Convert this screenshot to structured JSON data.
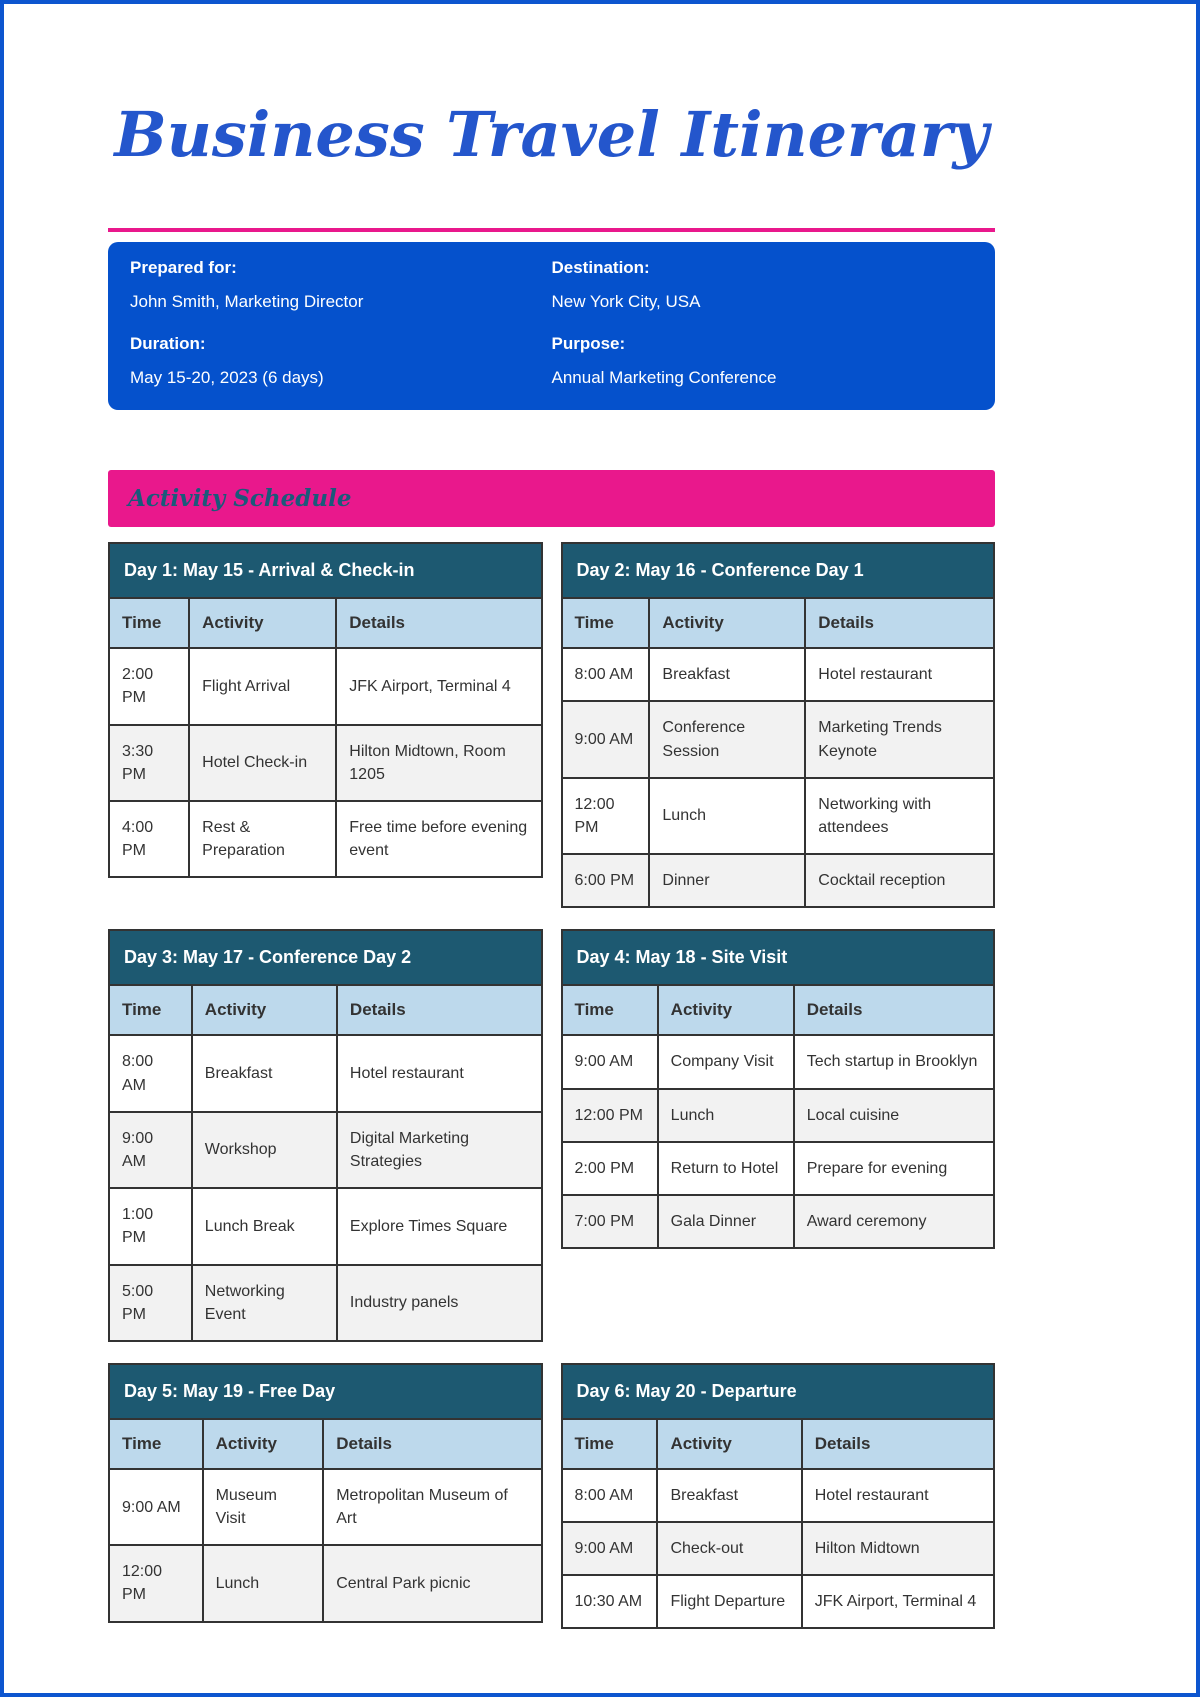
{
  "page": {
    "title": "Business Travel Itinerary",
    "banner": "Activity Schedule"
  },
  "info": {
    "fields": [
      {
        "label": "Prepared for:",
        "value": "John Smith, Marketing Director"
      },
      {
        "label": "Destination:",
        "value": "New York City, USA"
      },
      {
        "label": "Duration:",
        "value": "May 15-20, 2023 (6 days)"
      },
      {
        "label": "Purpose:",
        "value": "Annual Marketing Conference"
      }
    ]
  },
  "schedule": {
    "columns": [
      "Time",
      "Activity",
      "Details"
    ],
    "days": [
      {
        "title": "Day 1: May 15 - Arrival & Check-in",
        "rows": [
          {
            "time": "2:00 PM",
            "activity": "Flight Arrival",
            "details": "JFK Airport, Terminal 4"
          },
          {
            "time": "3:30 PM",
            "activity": "Hotel Check-in",
            "details": "Hilton Midtown, Room 1205"
          },
          {
            "time": "4:00 PM",
            "activity": "Rest & Preparation",
            "details": "Free time before evening event"
          }
        ]
      },
      {
        "title": "Day 2: May 16 - Conference Day 1",
        "rows": [
          {
            "time": "8:00 AM",
            "activity": "Breakfast",
            "details": "Hotel restaurant"
          },
          {
            "time": "9:00 AM",
            "activity": "Conference Session",
            "details": "Marketing Trends Keynote"
          },
          {
            "time": "12:00 PM",
            "activity": "Lunch",
            "details": "Networking with attendees"
          },
          {
            "time": "6:00 PM",
            "activity": "Dinner",
            "details": "Cocktail reception"
          }
        ]
      },
      {
        "title": "Day 3: May 17 - Conference Day 2",
        "rows": [
          {
            "time": "8:00 AM",
            "activity": "Breakfast",
            "details": "Hotel restaurant"
          },
          {
            "time": "9:00 AM",
            "activity": "Workshop",
            "details": "Digital Marketing Strategies"
          },
          {
            "time": "1:00 PM",
            "activity": "Lunch Break",
            "details": "Explore Times Square"
          },
          {
            "time": "5:00 PM",
            "activity": "Networking Event",
            "details": "Industry panels"
          }
        ]
      },
      {
        "title": "Day 4: May 18 - Site Visit",
        "rows": [
          {
            "time": "9:00 AM",
            "activity": "Company Visit",
            "details": "Tech startup in Brooklyn"
          },
          {
            "time": "12:00 PM",
            "activity": "Lunch",
            "details": "Local cuisine"
          },
          {
            "time": "2:00 PM",
            "activity": "Return to Hotel",
            "details": "Prepare for evening"
          },
          {
            "time": "7:00 PM",
            "activity": "Gala Dinner",
            "details": "Award ceremony"
          }
        ]
      },
      {
        "title": "Day 5: May 19 - Free Day",
        "rows": [
          {
            "time": "9:00 AM",
            "activity": "Museum Visit",
            "details": "Metropolitan Museum of Art"
          },
          {
            "time": "12:00 PM",
            "activity": "Lunch",
            "details": "Central Park picnic"
          }
        ]
      },
      {
        "title": "Day 6: May 20 - Departure",
        "rows": [
          {
            "time": "8:00 AM",
            "activity": "Breakfast",
            "details": "Hotel restaurant"
          },
          {
            "time": "9:00 AM",
            "activity": "Check-out",
            "details": "Hilton Midtown"
          },
          {
            "time": "10:30 AM",
            "activity": "Flight Departure",
            "details": "JFK Airport, Terminal 4"
          }
        ]
      }
    ]
  },
  "colors": {
    "page_border_blue": "#0d55cf",
    "title_blue": "#2456cc",
    "accent_pink": "#e9188c",
    "info_bg": "#0551cc",
    "banner_text": "#1a5a7a",
    "day_header_bg": "#1d5971",
    "col_header_bg": "#bdd9ec",
    "row_alt": "#f2f2f2",
    "cell_border": "#333333",
    "text_dark": "#333333"
  }
}
